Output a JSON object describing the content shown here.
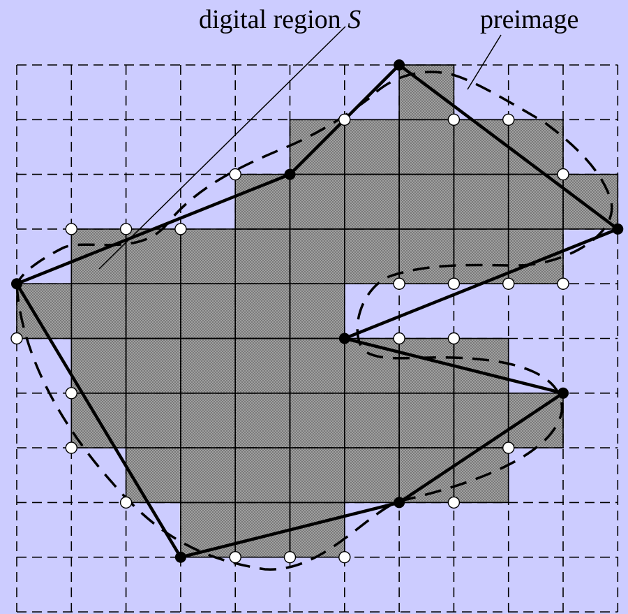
{
  "labels": {
    "digital_region": "digital region",
    "digital_region_symbol": "S",
    "preimage": "preimage"
  },
  "colors": {
    "background": "#ccccff",
    "cell_fill": "#999999",
    "line": "#000000",
    "open_point": "#ffffff"
  },
  "grid": {
    "columns": 11,
    "rows": 10
  },
  "region_cells": [
    [
      7,
      0
    ],
    [
      5,
      1
    ],
    [
      6,
      1
    ],
    [
      7,
      1
    ],
    [
      8,
      1
    ],
    [
      9,
      1
    ],
    [
      4,
      2
    ],
    [
      5,
      2
    ],
    [
      6,
      2
    ],
    [
      7,
      2
    ],
    [
      8,
      2
    ],
    [
      9,
      2
    ],
    [
      10,
      2
    ],
    [
      1,
      3
    ],
    [
      2,
      3
    ],
    [
      3,
      3
    ],
    [
      4,
      3
    ],
    [
      5,
      3
    ],
    [
      6,
      3
    ],
    [
      7,
      3
    ],
    [
      8,
      3
    ],
    [
      9,
      3
    ],
    [
      0,
      4
    ],
    [
      1,
      4
    ],
    [
      2,
      4
    ],
    [
      3,
      4
    ],
    [
      4,
      4
    ],
    [
      5,
      4
    ],
    [
      1,
      5
    ],
    [
      2,
      5
    ],
    [
      3,
      5
    ],
    [
      4,
      5
    ],
    [
      5,
      5
    ],
    [
      6,
      5
    ],
    [
      7,
      5
    ],
    [
      8,
      5
    ],
    [
      1,
      6
    ],
    [
      2,
      6
    ],
    [
      3,
      6
    ],
    [
      4,
      6
    ],
    [
      5,
      6
    ],
    [
      6,
      6
    ],
    [
      7,
      6
    ],
    [
      8,
      6
    ],
    [
      9,
      6
    ],
    [
      2,
      7
    ],
    [
      3,
      7
    ],
    [
      4,
      7
    ],
    [
      5,
      7
    ],
    [
      6,
      7
    ],
    [
      7,
      7
    ],
    [
      8,
      7
    ],
    [
      3,
      8
    ],
    [
      4,
      8
    ],
    [
      5,
      8
    ]
  ],
  "polygon_vertices": [
    [
      7,
      0
    ],
    [
      11,
      3
    ],
    [
      6,
      5
    ],
    [
      10,
      6
    ],
    [
      7,
      8
    ],
    [
      3,
      9
    ],
    [
      0,
      4
    ],
    [
      5,
      2
    ],
    [
      6,
      1
    ]
  ],
  "open_points": [
    [
      8,
      1
    ],
    [
      9,
      1
    ],
    [
      6,
      1
    ],
    [
      4,
      2
    ],
    [
      10,
      2
    ],
    [
      1,
      3
    ],
    [
      2,
      3
    ],
    [
      3,
      3
    ],
    [
      7,
      4
    ],
    [
      8,
      4
    ],
    [
      9,
      4
    ],
    [
      10,
      4
    ],
    [
      0,
      5
    ],
    [
      7,
      5
    ],
    [
      8,
      5
    ],
    [
      1,
      6
    ],
    [
      1,
      7
    ],
    [
      9,
      7
    ],
    [
      2,
      8
    ],
    [
      8,
      8
    ],
    [
      4,
      9
    ],
    [
      5,
      9
    ],
    [
      6,
      9
    ]
  ]
}
